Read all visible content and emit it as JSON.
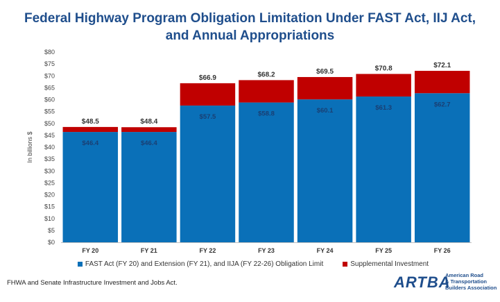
{
  "header": {
    "title_line1": "Federal Highway Program Obligation Limitation Under FAST Act, IIJ Act,",
    "title_line2": "and Annual Appropriations"
  },
  "chart_data": {
    "type": "bar",
    "stacked": true,
    "categories": [
      "FY 20",
      "FY 21",
      "FY 22",
      "FY 23",
      "FY 24",
      "FY 25",
      "FY 26"
    ],
    "series": [
      {
        "name": "FAST Act (FY 20) and Extension (FY 21), and IIJA (FY 22-26) Obligation Limit",
        "color": "#0a70b8",
        "values": [
          46.4,
          46.4,
          57.5,
          58.8,
          60.1,
          61.3,
          62.7
        ],
        "labels": [
          "$46.4",
          "$46.4",
          "$57.5",
          "$58.8",
          "$60.1",
          "$61.3",
          "$62.7"
        ]
      },
      {
        "name": "Supplemental Investment",
        "color": "#c00000",
        "values": [
          2.1,
          2.0,
          9.4,
          9.4,
          9.4,
          9.5,
          9.4
        ]
      }
    ],
    "totals": [
      48.5,
      48.4,
      66.9,
      68.2,
      69.5,
      70.8,
      72.1
    ],
    "total_labels": [
      "$48.5",
      "$48.4",
      "$66.9",
      "$68.2",
      "$69.5",
      "$70.8",
      "$72.1"
    ],
    "ylabel": "In billions $",
    "ylim": [
      0,
      80
    ],
    "yticks": [
      "$0",
      "$5",
      "$10",
      "$15",
      "$20",
      "$25",
      "$30",
      "$35",
      "$40",
      "$45",
      "$50",
      "$55",
      "$60",
      "$65",
      "$70",
      "$75",
      "$80"
    ],
    "legend_position": "bottom",
    "grid": false
  },
  "footer": {
    "source": "FHWA and Senate Infrastructure Investment and Jobs Act.",
    "logo_mark": "ARTBA",
    "logo_text": "American Road\n& Transportation\nBuilders Association"
  }
}
